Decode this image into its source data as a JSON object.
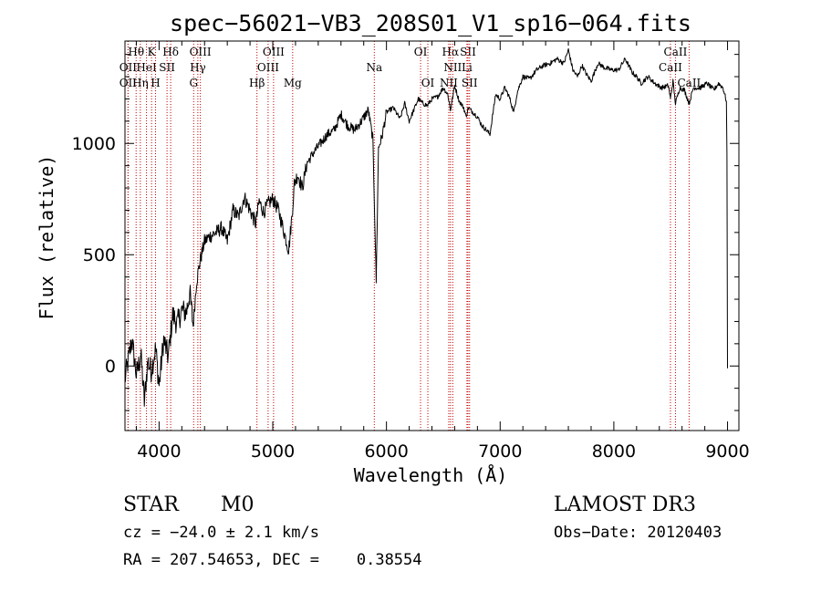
{
  "chart_data": {
    "type": "line",
    "title": "spec−56021−VB3_208S01_V1_sp16−064.fits",
    "xlabel": "Wavelength (Å)",
    "ylabel": "Flux (relative)",
    "xlim": [
      3700,
      9100
    ],
    "ylim": [
      -290,
      1460
    ],
    "xticks": [
      4000,
      5000,
      6000,
      7000,
      8000,
      9000
    ],
    "xtick_labels": [
      "4000",
      "5000",
      "6000",
      "7000",
      "8000",
      "9000"
    ],
    "yticks": [
      0,
      500,
      1000
    ],
    "ytick_labels": [
      "0",
      "500",
      "1000"
    ],
    "series": [
      {
        "name": "flux",
        "x": [
          3700,
          3760,
          3800,
          3840,
          3870,
          3900,
          3930,
          3970,
          4000,
          4040,
          4080,
          4120,
          4160,
          4200,
          4240,
          4270,
          4300,
          4330,
          4360,
          4400,
          4440,
          4500,
          4550,
          4600,
          4650,
          4700,
          4750,
          4800,
          4850,
          4880,
          4920,
          4960,
          5000,
          5050,
          5100,
          5140,
          5170,
          5190,
          5220,
          5260,
          5300,
          5360,
          5420,
          5480,
          5540,
          5600,
          5660,
          5720,
          5780,
          5840,
          5880,
          5900,
          5910,
          5930,
          5960,
          6000,
          6060,
          6120,
          6160,
          6200,
          6240,
          6280,
          6320,
          6360,
          6400,
          6450,
          6500,
          6540,
          6563,
          6600,
          6640,
          6680,
          6700,
          6720,
          6760,
          6800,
          6840,
          6880,
          6910,
          6960,
          7000,
          7040,
          7080,
          7120,
          7150,
          7200,
          7260,
          7320,
          7380,
          7440,
          7500,
          7560,
          7600,
          7640,
          7680,
          7720,
          7760,
          7800,
          7860,
          7920,
          7980,
          8040,
          8100,
          8160,
          8200,
          8240,
          8300,
          8360,
          8420,
          8480,
          8498,
          8520,
          8542,
          8580,
          8620,
          8662,
          8700,
          8760,
          8820,
          8880,
          8920,
          8960,
          8990,
          8995,
          9000
        ],
        "y": [
          -60,
          120,
          -40,
          50,
          -160,
          20,
          -20,
          80,
          -90,
          120,
          40,
          230,
          190,
          250,
          240,
          330,
          180,
          380,
          470,
          560,
          580,
          600,
          620,
          560,
          700,
          670,
          760,
          700,
          640,
          740,
          690,
          730,
          750,
          700,
          600,
          520,
          680,
          820,
          860,
          800,
          910,
          960,
          1000,
          1040,
          1060,
          1130,
          1080,
          1060,
          1100,
          1150,
          1020,
          600,
          380,
          980,
          1030,
          1140,
          1160,
          1110,
          1180,
          1100,
          1150,
          1200,
          1180,
          1170,
          1200,
          1210,
          1250,
          1220,
          1150,
          1260,
          1190,
          1160,
          1120,
          1160,
          1140,
          1120,
          1080,
          1060,
          1040,
          1220,
          1200,
          1250,
          1210,
          1140,
          1230,
          1300,
          1290,
          1330,
          1350,
          1360,
          1380,
          1360,
          1420,
          1330,
          1300,
          1350,
          1310,
          1280,
          1360,
          1340,
          1330,
          1330,
          1380,
          1320,
          1300,
          1270,
          1300,
          1270,
          1250,
          1260,
          1200,
          1280,
          1180,
          1250,
          1240,
          1180,
          1250,
          1250,
          1270,
          1240,
          1270,
          1250,
          1190,
          950,
          -10
        ]
      }
    ],
    "line_markers": [
      {
        "label": "Hθ",
        "row": 1,
        "x": 3798
      },
      {
        "label": "OII",
        "row": 2,
        "x": 3727
      },
      {
        "label": "OII",
        "row": 3,
        "x": 3727
      },
      {
        "label": "K",
        "row": 1,
        "x": 3934
      },
      {
        "label": "HeI",
        "row": 2,
        "x": 3889
      },
      {
        "label": "Hη",
        "row": 3,
        "x": 3835
      },
      {
        "label": "H",
        "row": 3,
        "x": 3969
      },
      {
        "label": "SII",
        "row": 2,
        "x": 4070
      },
      {
        "label": "Hδ",
        "row": 1,
        "x": 4102
      },
      {
        "label": "OIII",
        "row": 1,
        "x": 4363
      },
      {
        "label": "Hγ",
        "row": 2,
        "x": 4341
      },
      {
        "label": "G",
        "row": 3,
        "x": 4304
      },
      {
        "label": "OIII",
        "row": 1,
        "x": 5007
      },
      {
        "label": "OIII",
        "row": 2,
        "x": 4959
      },
      {
        "label": "Hβ",
        "row": 3,
        "x": 4861
      },
      {
        "label": "Mg",
        "row": 3,
        "x": 5175
      },
      {
        "label": "Na",
        "row": 2,
        "x": 5893
      },
      {
        "label": "OI",
        "row": 1,
        "x": 6300
      },
      {
        "label": "OI",
        "row": 3,
        "x": 6364
      },
      {
        "label": "Hα",
        "row": 1,
        "x": 6563
      },
      {
        "label": "SII",
        "row": 1,
        "x": 6717
      },
      {
        "label": "NII",
        "row": 2,
        "x": 6583
      },
      {
        "label": "Li",
        "row": 2,
        "x": 6708
      },
      {
        "label": "NII",
        "row": 3,
        "x": 6548
      },
      {
        "label": "SII",
        "row": 3,
        "x": 6731
      },
      {
        "label": "CaII",
        "row": 1,
        "x": 8542
      },
      {
        "label": "CaII",
        "row": 2,
        "x": 8498
      },
      {
        "label": "CaII",
        "row": 3,
        "x": 8662
      }
    ],
    "annotations": {
      "class": "STAR",
      "subclass": "M0",
      "survey": "LAMOST DR3",
      "cz": "cz = −24.0 ± 2.1 km/s",
      "obs_date": "Obs−Date: 20120403",
      "coords": "RA = 207.54653, DEC =    0.38554"
    }
  }
}
